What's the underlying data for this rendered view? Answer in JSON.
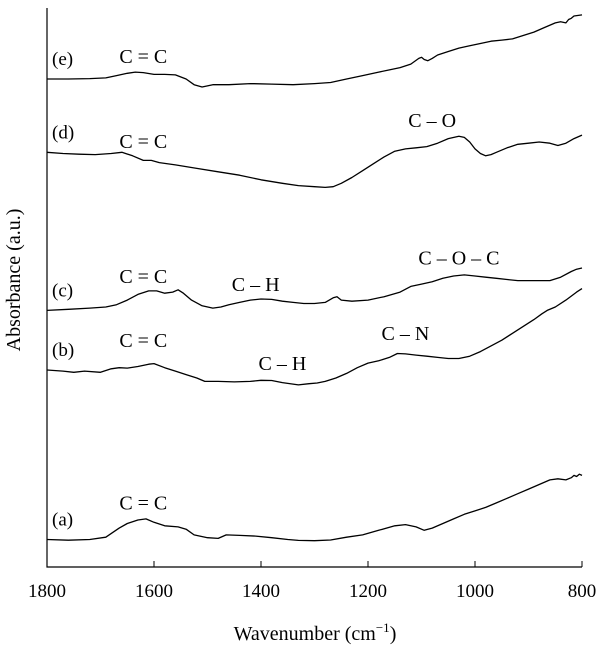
{
  "chart_data": {
    "type": "line",
    "xlabel": "Wavenumber (cm",
    "xlabel_sup": "−1",
    "xlabel_close": ")",
    "ylabel": "Absorbance (a.u.)",
    "xlim": [
      1800,
      800
    ],
    "x_reversed": true,
    "y_ticks_shown": false,
    "xticks": [
      "1800",
      "1600",
      "1400",
      "1200",
      "1000",
      "800"
    ],
    "series": [
      {
        "name": "(a)",
        "offset": 0.0,
        "x": [
          1800,
          1760,
          1720,
          1690,
          1665,
          1650,
          1630,
          1615,
          1600,
          1580,
          1555,
          1540,
          1525,
          1500,
          1480,
          1465,
          1440,
          1410,
          1380,
          1350,
          1330,
          1300,
          1270,
          1240,
          1210,
          1180,
          1150,
          1130,
          1110,
          1095,
          1080,
          1060,
          1040,
          1020,
          1000,
          980,
          960,
          940,
          920,
          900,
          880,
          860,
          845,
          830,
          820,
          815,
          810,
          805,
          800
        ],
        "y": [
          0.0,
          -0.003,
          0.0,
          0.01,
          0.05,
          0.07,
          0.085,
          0.09,
          0.075,
          0.06,
          0.055,
          0.045,
          0.02,
          0.008,
          0.005,
          0.02,
          0.018,
          0.015,
          0.008,
          0.0,
          -0.004,
          -0.005,
          -0.002,
          0.01,
          0.02,
          0.04,
          0.06,
          0.065,
          0.055,
          0.04,
          0.05,
          0.07,
          0.09,
          0.11,
          0.125,
          0.14,
          0.16,
          0.18,
          0.2,
          0.22,
          0.24,
          0.26,
          0.265,
          0.26,
          0.27,
          0.28,
          0.275,
          0.285,
          0.28
        ]
      },
      {
        "name": "(b)",
        "offset": 0.0,
        "x": [
          1800,
          1770,
          1750,
          1730,
          1700,
          1680,
          1665,
          1650,
          1630,
          1610,
          1600,
          1580,
          1560,
          1540,
          1520,
          1505,
          1480,
          1450,
          1420,
          1400,
          1380,
          1360,
          1330,
          1310,
          1295,
          1280,
          1260,
          1240,
          1220,
          1200,
          1180,
          1160,
          1145,
          1130,
          1110,
          1090,
          1070,
          1050,
          1030,
          1010,
          990,
          970,
          950,
          930,
          910,
          890,
          875,
          865,
          850,
          830,
          810,
          800
        ],
        "y": [
          0.74,
          0.735,
          0.73,
          0.735,
          0.73,
          0.745,
          0.75,
          0.748,
          0.755,
          0.765,
          0.768,
          0.75,
          0.735,
          0.72,
          0.705,
          0.69,
          0.69,
          0.688,
          0.69,
          0.695,
          0.694,
          0.685,
          0.675,
          0.68,
          0.683,
          0.69,
          0.705,
          0.725,
          0.75,
          0.77,
          0.78,
          0.795,
          0.812,
          0.81,
          0.805,
          0.8,
          0.795,
          0.79,
          0.79,
          0.8,
          0.82,
          0.845,
          0.87,
          0.9,
          0.93,
          0.96,
          0.985,
          1.0,
          1.015,
          1.045,
          1.08,
          1.095
        ]
      },
      {
        "name": "(c)",
        "offset": 0.0,
        "x": [
          1800,
          1760,
          1720,
          1690,
          1670,
          1650,
          1630,
          1610,
          1595,
          1580,
          1565,
          1555,
          1545,
          1530,
          1510,
          1490,
          1475,
          1460,
          1440,
          1420,
          1400,
          1380,
          1360,
          1340,
          1320,
          1300,
          1280,
          1265,
          1258,
          1250,
          1230,
          1200,
          1170,
          1140,
          1120,
          1100,
          1080,
          1060,
          1040,
          1020,
          1000,
          980,
          960,
          940,
          920,
          900,
          880,
          860,
          840,
          820,
          810,
          800
        ],
        "y": [
          1.0,
          1.005,
          1.01,
          1.015,
          1.025,
          1.045,
          1.07,
          1.085,
          1.085,
          1.075,
          1.08,
          1.09,
          1.075,
          1.045,
          1.02,
          1.01,
          1.015,
          1.025,
          1.035,
          1.045,
          1.05,
          1.048,
          1.04,
          1.035,
          1.03,
          1.03,
          1.035,
          1.055,
          1.06,
          1.045,
          1.04,
          1.045,
          1.06,
          1.08,
          1.105,
          1.115,
          1.125,
          1.14,
          1.15,
          1.155,
          1.15,
          1.145,
          1.14,
          1.135,
          1.13,
          1.13,
          1.13,
          1.13,
          1.145,
          1.17,
          1.18,
          1.185
        ]
      },
      {
        "name": "(d)",
        "offset": 0.0,
        "x": [
          1800,
          1770,
          1740,
          1710,
          1680,
          1660,
          1640,
          1620,
          1605,
          1590,
          1560,
          1520,
          1480,
          1440,
          1400,
          1360,
          1330,
          1300,
          1280,
          1265,
          1250,
          1230,
          1210,
          1190,
          1170,
          1150,
          1130,
          1110,
          1090,
          1070,
          1050,
          1030,
          1020,
          1010,
          1000,
          990,
          980,
          970,
          960,
          940,
          920,
          900,
          880,
          860,
          845,
          830,
          815,
          800
        ],
        "y": [
          1.69,
          1.685,
          1.682,
          1.68,
          1.685,
          1.69,
          1.675,
          1.655,
          1.655,
          1.645,
          1.635,
          1.62,
          1.605,
          1.59,
          1.57,
          1.555,
          1.545,
          1.54,
          1.537,
          1.54,
          1.555,
          1.58,
          1.61,
          1.64,
          1.67,
          1.695,
          1.705,
          1.71,
          1.715,
          1.73,
          1.75,
          1.76,
          1.755,
          1.735,
          1.705,
          1.685,
          1.675,
          1.68,
          1.69,
          1.71,
          1.725,
          1.73,
          1.735,
          1.73,
          1.72,
          1.73,
          1.75,
          1.765
        ]
      },
      {
        "name": "(e)",
        "offset": 0.0,
        "x": [
          1800,
          1760,
          1720,
          1690,
          1670,
          1650,
          1635,
          1620,
          1600,
          1580,
          1560,
          1540,
          1525,
          1510,
          1490,
          1460,
          1420,
          1380,
          1340,
          1300,
          1270,
          1240,
          1210,
          1180,
          1160,
          1140,
          1120,
          1105,
          1100,
          1095,
          1088,
          1080,
          1070,
          1050,
          1030,
          1010,
          990,
          970,
          950,
          930,
          910,
          890,
          870,
          850,
          840,
          830,
          825,
          820,
          815,
          800
        ],
        "y": [
          2.01,
          2.01,
          2.012,
          2.015,
          2.025,
          2.035,
          2.04,
          2.038,
          2.03,
          2.03,
          2.028,
          2.01,
          1.985,
          1.975,
          1.985,
          1.985,
          1.99,
          1.988,
          1.985,
          1.99,
          1.995,
          2.01,
          2.025,
          2.04,
          2.05,
          2.06,
          2.075,
          2.1,
          2.105,
          2.095,
          2.09,
          2.1,
          2.115,
          2.13,
          2.145,
          2.155,
          2.165,
          2.175,
          2.18,
          2.185,
          2.2,
          2.215,
          2.235,
          2.255,
          2.26,
          2.255,
          2.27,
          2.275,
          2.285,
          2.29
        ]
      }
    ],
    "annotations": [
      {
        "text": "C = C",
        "x": 1620,
        "y": 0.13
      },
      {
        "text": "C = C",
        "x": 1620,
        "y": 0.84
      },
      {
        "text": "C – H",
        "x": 1360,
        "y": 0.74
      },
      {
        "text": "C – N",
        "x": 1130,
        "y": 0.87
      },
      {
        "text": "C = C",
        "x": 1620,
        "y": 1.12
      },
      {
        "text": "C – H",
        "x": 1410,
        "y": 1.085
      },
      {
        "text": "C – O – C",
        "x": 1030,
        "y": 1.2
      },
      {
        "text": "C = C",
        "x": 1620,
        "y": 1.71
      },
      {
        "text": "C – O",
        "x": 1080,
        "y": 1.8
      },
      {
        "text": "C = C",
        "x": 1620,
        "y": 2.08
      }
    ]
  }
}
